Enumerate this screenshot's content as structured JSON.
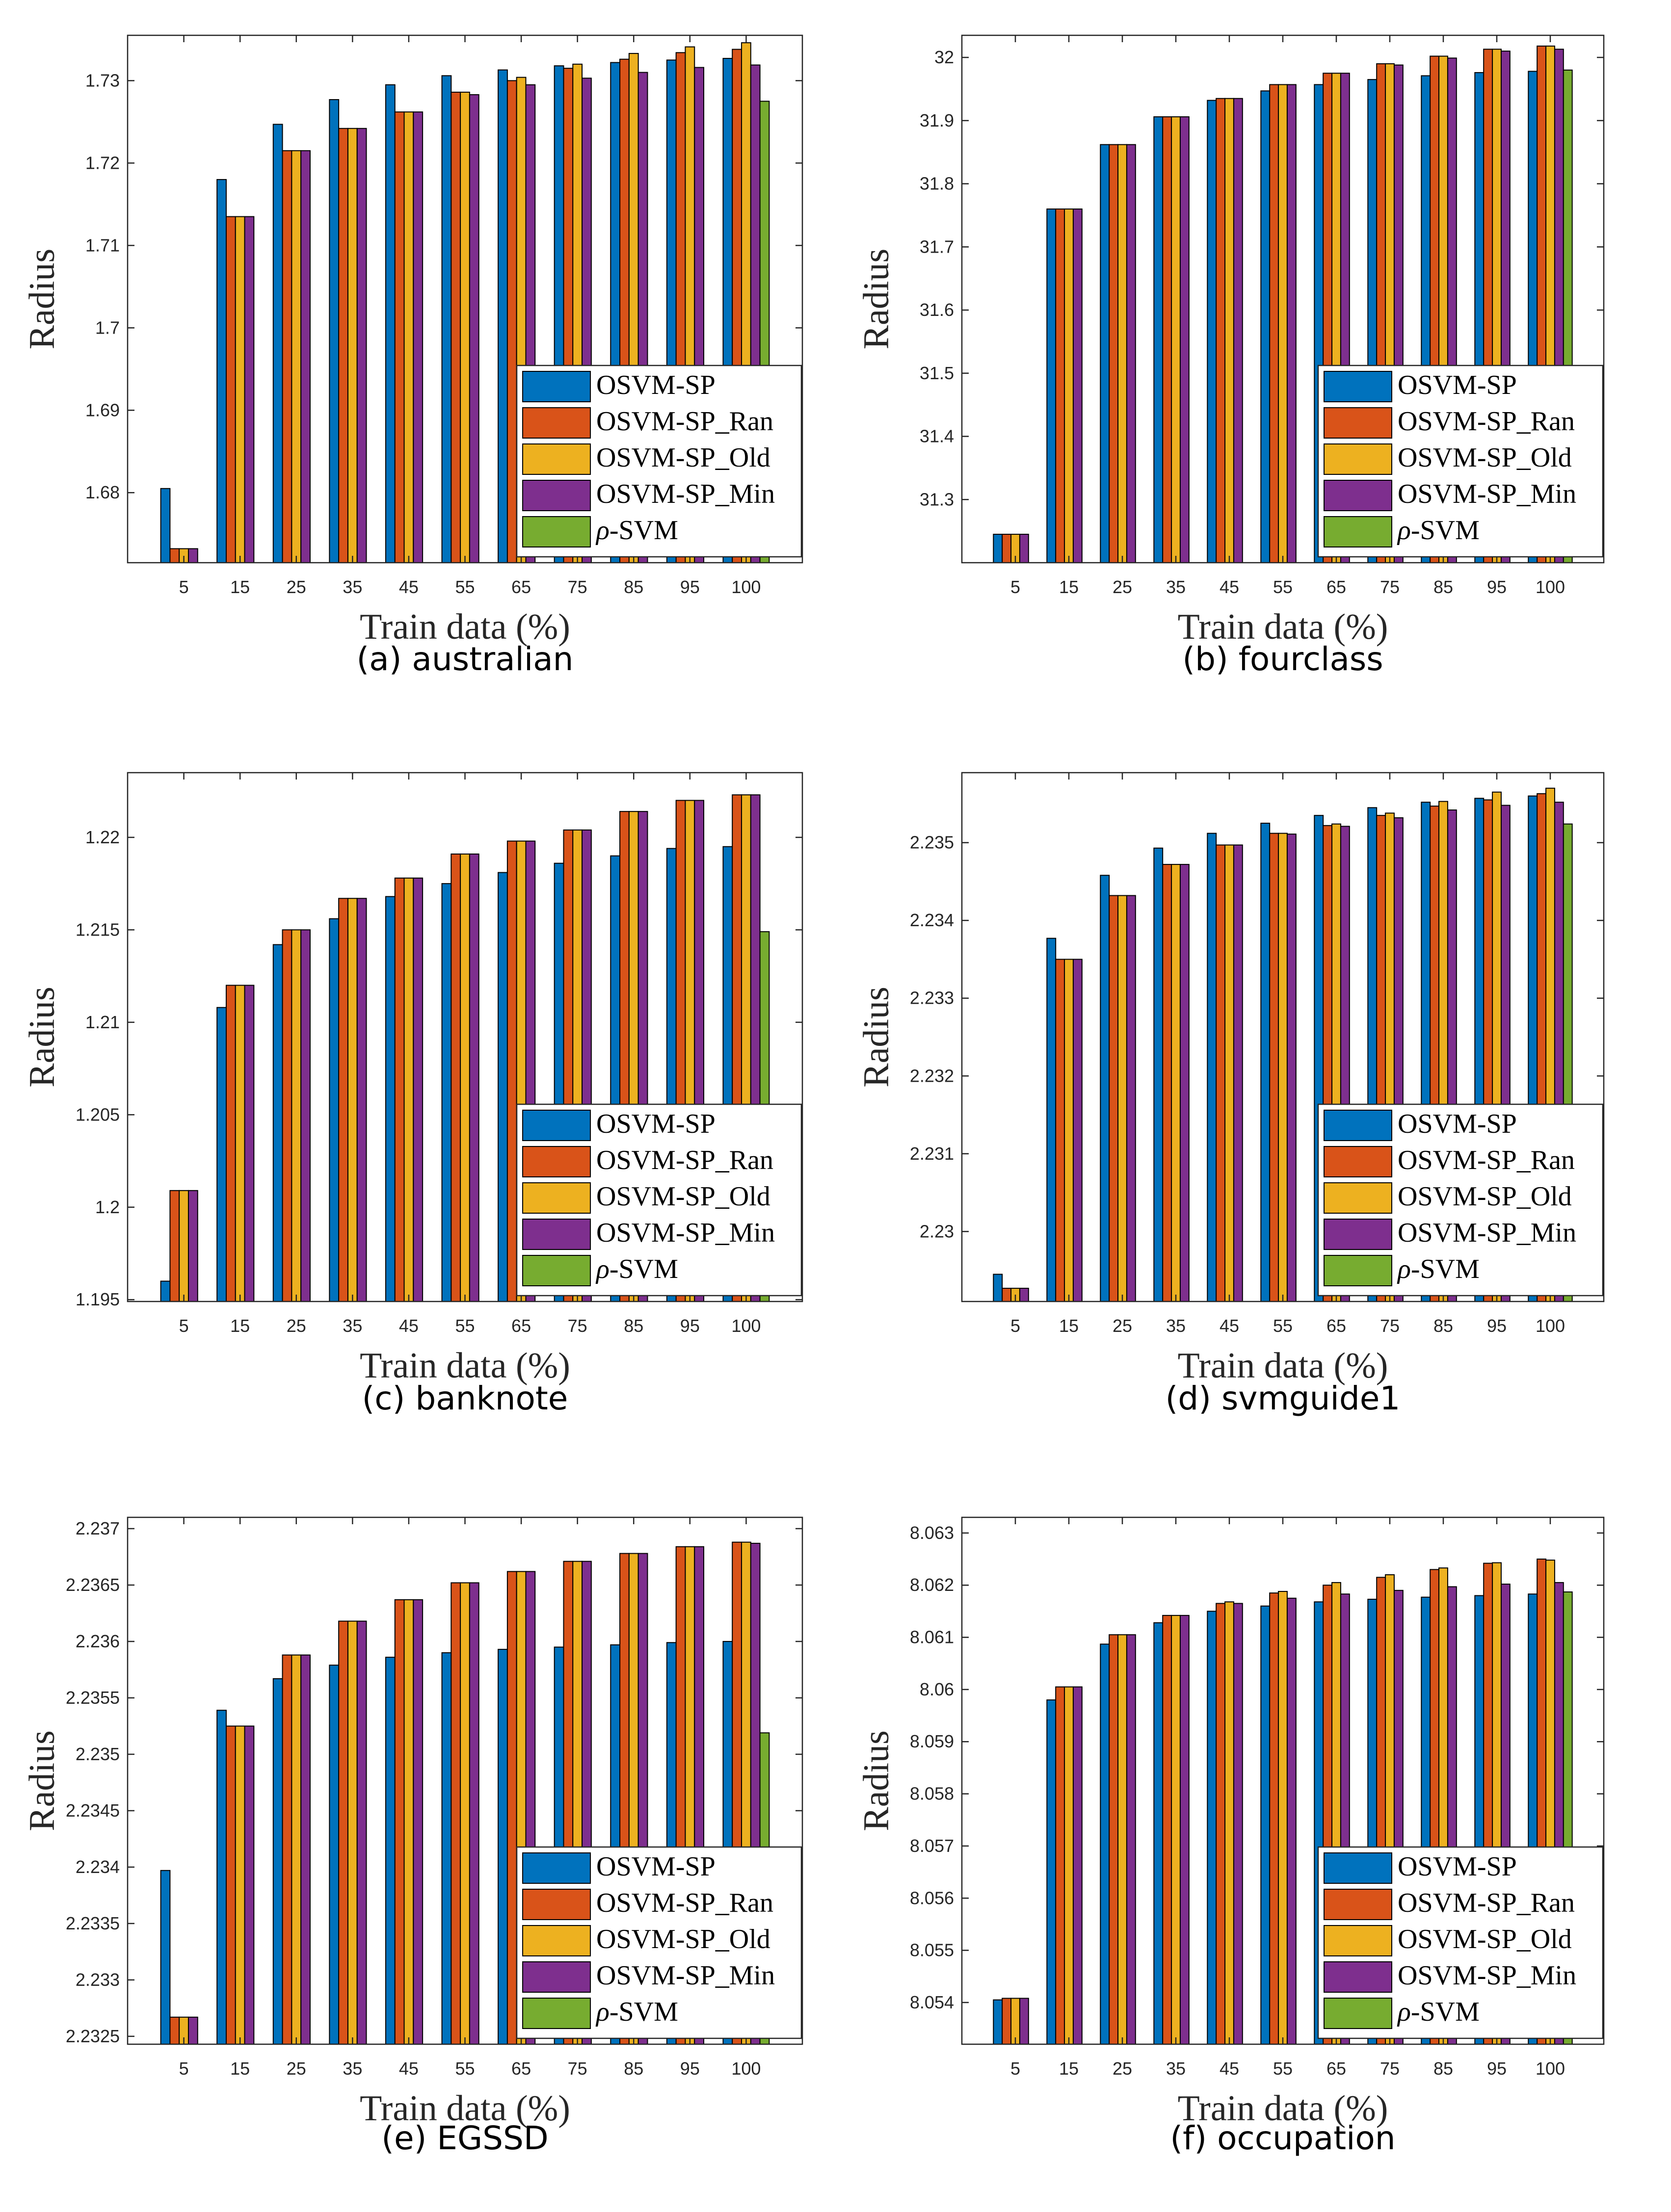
{
  "legend_labels": [
    "OSVM-SP",
    "OSVM-SP_Ran",
    "OSVM-SP_Old",
    "OSVM-SP_Min",
    "ρ-SVM"
  ],
  "series_colors": [
    "#0072BD",
    "#D95319",
    "#EDB120",
    "#7E2F8E",
    "#77AC30"
  ],
  "chart_data": [
    {
      "type": "bar",
      "caption": "(a) australian",
      "xlabel": "Train data (%)",
      "ylabel": "Radius",
      "categories": [
        "5",
        "15",
        "25",
        "35",
        "45",
        "55",
        "65",
        "75",
        "85",
        "95",
        "100"
      ],
      "ylim": [
        1.6715,
        1.7355
      ],
      "yticks": [
        1.68,
        1.69,
        1.7,
        1.71,
        1.72,
        1.73
      ],
      "ytick_labels": [
        "1.68",
        "1.69",
        "1.7",
        "1.71",
        "1.72",
        "1.73"
      ],
      "legend_position": "bottom-right",
      "series": [
        {
          "name": "OSVM-SP",
          "values": [
            1.6805,
            1.718,
            1.7247,
            1.7277,
            1.7295,
            1.7306,
            1.7313,
            1.7318,
            1.7322,
            1.7325,
            1.7327
          ]
        },
        {
          "name": "OSVM-SP_Ran",
          "values": [
            1.6732,
            1.7135,
            1.7215,
            1.7242,
            1.7262,
            1.7286,
            1.73,
            1.7315,
            1.7326,
            1.7334,
            1.7338
          ]
        },
        {
          "name": "OSVM-SP_Old",
          "values": [
            1.6732,
            1.7135,
            1.7215,
            1.7242,
            1.7262,
            1.7286,
            1.7304,
            1.732,
            1.7333,
            1.7341,
            1.7346
          ]
        },
        {
          "name": "OSVM-SP_Min",
          "values": [
            1.6732,
            1.7135,
            1.7215,
            1.7242,
            1.7262,
            1.7283,
            1.7295,
            1.7303,
            1.731,
            1.7316,
            1.7319
          ]
        },
        {
          "name": "ρ-SVM",
          "values": [
            null,
            null,
            null,
            null,
            null,
            null,
            null,
            null,
            null,
            null,
            1.7275
          ]
        }
      ]
    },
    {
      "type": "bar",
      "caption": "(b) fourclass",
      "xlabel": "Train data (%)",
      "ylabel": "Radius",
      "categories": [
        "5",
        "15",
        "25",
        "35",
        "45",
        "55",
        "65",
        "75",
        "85",
        "95",
        "100"
      ],
      "ylim": [
        31.2,
        32.035
      ],
      "yticks": [
        31.3,
        31.4,
        31.5,
        31.6,
        31.7,
        31.8,
        31.9,
        32
      ],
      "ytick_labels": [
        "31.3",
        "31.4",
        "31.5",
        "31.6",
        "31.7",
        "31.8",
        "31.9",
        "32"
      ],
      "legend_position": "bottom-right",
      "series": [
        {
          "name": "OSVM-SP",
          "values": [
            31.245,
            31.76,
            31.862,
            31.906,
            31.932,
            31.947,
            31.957,
            31.965,
            31.971,
            31.976,
            31.978
          ]
        },
        {
          "name": "OSVM-SP_Ran",
          "values": [
            31.245,
            31.76,
            31.862,
            31.906,
            31.935,
            31.957,
            31.975,
            31.99,
            32.002,
            32.013,
            32.018
          ]
        },
        {
          "name": "OSVM-SP_Old",
          "values": [
            31.245,
            31.76,
            31.862,
            31.906,
            31.935,
            31.957,
            31.975,
            31.99,
            32.002,
            32.013,
            32.018
          ]
        },
        {
          "name": "OSVM-SP_Min",
          "values": [
            31.245,
            31.76,
            31.862,
            31.906,
            31.935,
            31.957,
            31.975,
            31.988,
            31.999,
            32.01,
            32.013
          ]
        },
        {
          "name": "ρ-SVM",
          "values": [
            null,
            null,
            null,
            null,
            null,
            null,
            null,
            null,
            null,
            null,
            31.98
          ]
        }
      ]
    },
    {
      "type": "bar",
      "caption": "(c) banknote",
      "xlabel": "Train data (%)",
      "ylabel": "Radius",
      "categories": [
        "5",
        "15",
        "25",
        "35",
        "45",
        "55",
        "65",
        "75",
        "85",
        "95",
        "100"
      ],
      "ylim": [
        1.1949,
        1.2235
      ],
      "yticks": [
        1.195,
        1.2,
        1.205,
        1.21,
        1.215,
        1.22
      ],
      "ytick_labels": [
        "1.195",
        "1.2",
        "1.205",
        "1.21",
        "1.215",
        "1.22"
      ],
      "legend_position": "bottom-right",
      "series": [
        {
          "name": "OSVM-SP",
          "values": [
            1.196,
            1.2108,
            1.2142,
            1.2156,
            1.2168,
            1.2175,
            1.2181,
            1.2186,
            1.219,
            1.2194,
            1.2195
          ]
        },
        {
          "name": "OSVM-SP_Ran",
          "values": [
            1.2009,
            1.212,
            1.215,
            1.2167,
            1.2178,
            1.2191,
            1.2198,
            1.2204,
            1.2214,
            1.222,
            1.2223
          ]
        },
        {
          "name": "OSVM-SP_Old",
          "values": [
            1.2009,
            1.212,
            1.215,
            1.2167,
            1.2178,
            1.2191,
            1.2198,
            1.2204,
            1.2214,
            1.222,
            1.2223
          ]
        },
        {
          "name": "OSVM-SP_Min",
          "values": [
            1.2009,
            1.212,
            1.215,
            1.2167,
            1.2178,
            1.2191,
            1.2198,
            1.2204,
            1.2214,
            1.222,
            1.2223
          ]
        },
        {
          "name": "ρ-SVM",
          "values": [
            null,
            null,
            null,
            null,
            null,
            null,
            null,
            null,
            null,
            null,
            1.2149
          ]
        }
      ]
    },
    {
      "type": "bar",
      "caption": "(d) svmguide1",
      "xlabel": "Train data (%)",
      "ylabel": "Radius",
      "categories": [
        "5",
        "15",
        "25",
        "35",
        "45",
        "55",
        "65",
        "75",
        "85",
        "95",
        "100"
      ],
      "ylim": [
        2.2291,
        2.2359
      ],
      "yticks": [
        2.23,
        2.231,
        2.232,
        2.233,
        2.234,
        2.235
      ],
      "ytick_labels": [
        "2.23",
        "2.231",
        "2.232",
        "2.233",
        "2.234",
        "2.235"
      ],
      "legend_position": "bottom-right",
      "series": [
        {
          "name": "OSVM-SP",
          "values": [
            2.22945,
            2.23377,
            2.23458,
            2.23493,
            2.23512,
            2.23525,
            2.23535,
            2.23545,
            2.23552,
            2.23557,
            2.2356
          ]
        },
        {
          "name": "OSVM-SP_Ran",
          "values": [
            2.22927,
            2.2335,
            2.23432,
            2.23472,
            2.23497,
            2.23512,
            2.23522,
            2.23535,
            2.23547,
            2.23555,
            2.23563
          ]
        },
        {
          "name": "OSVM-SP_Old",
          "values": [
            2.22927,
            2.2335,
            2.23432,
            2.23472,
            2.23497,
            2.23512,
            2.23524,
            2.23538,
            2.23553,
            2.23565,
            2.2357
          ]
        },
        {
          "name": "OSVM-SP_Min",
          "values": [
            2.22927,
            2.2335,
            2.23432,
            2.23472,
            2.23497,
            2.23511,
            2.23521,
            2.23532,
            2.23542,
            2.23548,
            2.23552
          ]
        },
        {
          "name": "ρ-SVM",
          "values": [
            null,
            null,
            null,
            null,
            null,
            null,
            null,
            null,
            null,
            null,
            2.23524
          ]
        }
      ]
    },
    {
      "type": "bar",
      "caption": "(e) EGSSD",
      "xlabel": "Train data (%)",
      "ylabel": "Radius",
      "categories": [
        "5",
        "15",
        "25",
        "35",
        "45",
        "55",
        "65",
        "75",
        "85",
        "95",
        "100"
      ],
      "ylim": [
        2.23243,
        2.2371
      ],
      "yticks": [
        2.2325,
        2.233,
        2.2335,
        2.234,
        2.2345,
        2.235,
        2.2355,
        2.236,
        2.2365,
        2.237
      ],
      "ytick_labels": [
        "2.2325",
        "2.233",
        "2.2335",
        "2.234",
        "2.2345",
        "2.235",
        "2.2355",
        "2.236",
        "2.2365",
        "2.237"
      ],
      "legend_position": "bottom-right",
      "series": [
        {
          "name": "OSVM-SP",
          "values": [
            2.23397,
            2.23539,
            2.23567,
            2.23579,
            2.23586,
            2.2359,
            2.23593,
            2.23595,
            2.23597,
            2.23599,
            2.236
          ]
        },
        {
          "name": "OSVM-SP_Ran",
          "values": [
            2.23267,
            2.23525,
            2.23588,
            2.23618,
            2.23637,
            2.23652,
            2.23662,
            2.23671,
            2.23678,
            2.23684,
            2.23688
          ]
        },
        {
          "name": "OSVM-SP_Old",
          "values": [
            2.23267,
            2.23525,
            2.23588,
            2.23618,
            2.23637,
            2.23652,
            2.23662,
            2.23671,
            2.23678,
            2.23684,
            2.23688
          ]
        },
        {
          "name": "OSVM-SP_Min",
          "values": [
            2.23267,
            2.23525,
            2.23588,
            2.23618,
            2.23637,
            2.23652,
            2.23662,
            2.23671,
            2.23678,
            2.23684,
            2.23687
          ]
        },
        {
          "name": "ρ-SVM",
          "values": [
            null,
            null,
            null,
            null,
            null,
            null,
            null,
            null,
            null,
            null,
            2.23519
          ]
        }
      ]
    },
    {
      "type": "bar",
      "caption": "(f) occupation",
      "xlabel": "Train data (%)",
      "ylabel": "Radius",
      "categories": [
        "5",
        "15",
        "25",
        "35",
        "45",
        "55",
        "65",
        "75",
        "85",
        "95",
        "100"
      ],
      "ylim": [
        8.0532,
        8.0633
      ],
      "yticks": [
        8.054,
        8.055,
        8.056,
        8.057,
        8.058,
        8.059,
        8.06,
        8.061,
        8.062,
        8.063
      ],
      "ytick_labels": [
        "8.054",
        "8.055",
        "8.056",
        "8.057",
        "8.058",
        "8.059",
        "8.06",
        "8.061",
        "8.062",
        "8.063"
      ],
      "legend_position": "bottom-right",
      "series": [
        {
          "name": "OSVM-SP",
          "values": [
            8.05405,
            8.0598,
            8.06087,
            8.06128,
            8.0615,
            8.0616,
            8.06168,
            8.06173,
            8.06177,
            8.0618,
            8.06183
          ]
        },
        {
          "name": "OSVM-SP_Ran",
          "values": [
            8.05408,
            8.06005,
            8.06105,
            8.06142,
            8.06165,
            8.06185,
            8.062,
            8.06215,
            8.0623,
            8.06242,
            8.0625
          ]
        },
        {
          "name": "OSVM-SP_Old",
          "values": [
            8.05408,
            8.06005,
            8.06105,
            8.06142,
            8.06168,
            8.06188,
            8.06205,
            8.0622,
            8.06233,
            8.06243,
            8.06248
          ]
        },
        {
          "name": "OSVM-SP_Min",
          "values": [
            8.05408,
            8.06005,
            8.06105,
            8.06142,
            8.06165,
            8.06175,
            8.06183,
            8.0619,
            8.06197,
            8.06202,
            8.06205
          ]
        },
        {
          "name": "ρ-SVM",
          "values": [
            null,
            null,
            null,
            null,
            null,
            null,
            null,
            null,
            null,
            null,
            8.06187
          ]
        }
      ]
    }
  ]
}
